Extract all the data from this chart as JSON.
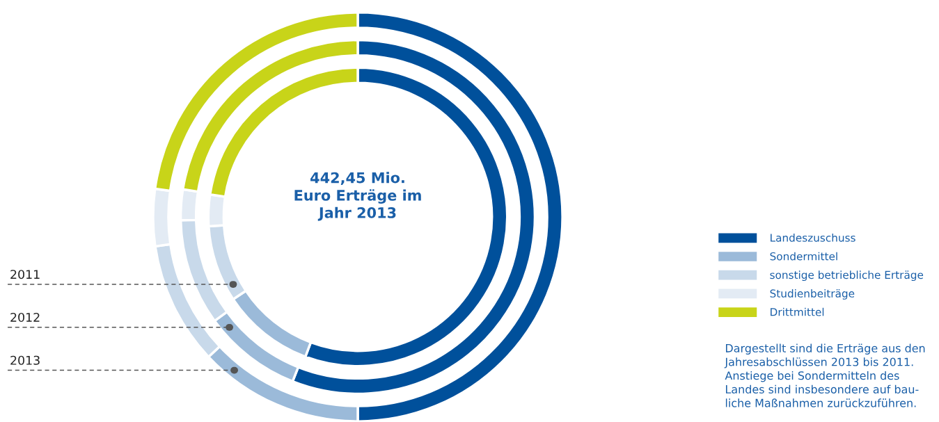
{
  "chart_data": {
    "type": "donut",
    "categories": [
      "Landeszuschuss",
      "Sondermittel",
      "sonstige betriebliche Erträge",
      "Studienbeiträge",
      "Drittmittel"
    ],
    "colors": [
      "#00509b",
      "#9bbad9",
      "#c8d9ea",
      "#e3ebf4",
      "#c8d419"
    ],
    "series": [
      {
        "name": "2013",
        "values": [
          50.0,
          13.0,
          9.7,
          4.5,
          22.8
        ]
      },
      {
        "name": "2012",
        "values": [
          56.0,
          9.0,
          9.7,
          2.8,
          22.5
        ]
      },
      {
        "name": "2011",
        "values": [
          55.7,
          10.0,
          8.3,
          3.4,
          22.6
        ]
      }
    ],
    "legend": "right",
    "annotations": [
      "442,45 Mio.\nEuro Erträge im\nJahr 2013",
      "Dargestellt sind die Erträge aus den\nJahresabschlüssen 2013 bis 2011.\nAnstiege bei Sondermitteln des\nLandes sind insbesondere auf bau-\nliche Maßnahmen zurückzuführen."
    ]
  }
}
